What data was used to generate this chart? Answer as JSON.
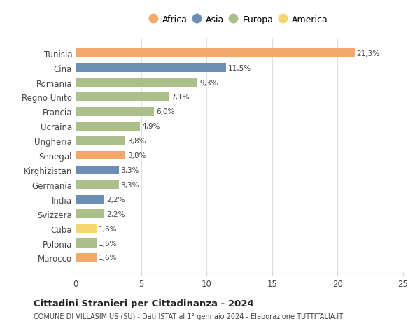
{
  "countries": [
    "Tunisia",
    "Cina",
    "Romania",
    "Regno Unito",
    "Francia",
    "Ucraina",
    "Ungheria",
    "Senegal",
    "Kirghizistan",
    "Germania",
    "India",
    "Svizzera",
    "Cuba",
    "Polonia",
    "Marocco"
  ],
  "values": [
    21.3,
    11.5,
    9.3,
    7.1,
    6.0,
    4.9,
    3.8,
    3.8,
    3.3,
    3.3,
    2.2,
    2.2,
    1.6,
    1.6,
    1.6
  ],
  "labels": [
    "21,3%",
    "11,5%",
    "9,3%",
    "7,1%",
    "6,0%",
    "4,9%",
    "3,8%",
    "3,8%",
    "3,3%",
    "3,3%",
    "2,2%",
    "2,2%",
    "1,6%",
    "1,6%",
    "1,6%"
  ],
  "continents": [
    "Africa",
    "Asia",
    "Europa",
    "Europa",
    "Europa",
    "Europa",
    "Europa",
    "Africa",
    "Asia",
    "Europa",
    "Asia",
    "Europa",
    "America",
    "Europa",
    "Africa"
  ],
  "colors": {
    "Africa": "#F4A96A",
    "Asia": "#6B8EB5",
    "Europa": "#AABF8A",
    "America": "#F5D76E"
  },
  "legend_order": [
    "Africa",
    "Asia",
    "Europa",
    "America"
  ],
  "xlim": [
    0,
    25
  ],
  "xticks": [
    0,
    5,
    10,
    15,
    20,
    25
  ],
  "title": "Cittadini Stranieri per Cittadinanza - 2024",
  "subtitle": "COMUNE DI VILLASIMIUS (SU) - Dati ISTAT al 1° gennaio 2024 - Elaborazione TUTTITALIA.IT",
  "background_color": "#ffffff",
  "grid_color": "#e0e0e0"
}
